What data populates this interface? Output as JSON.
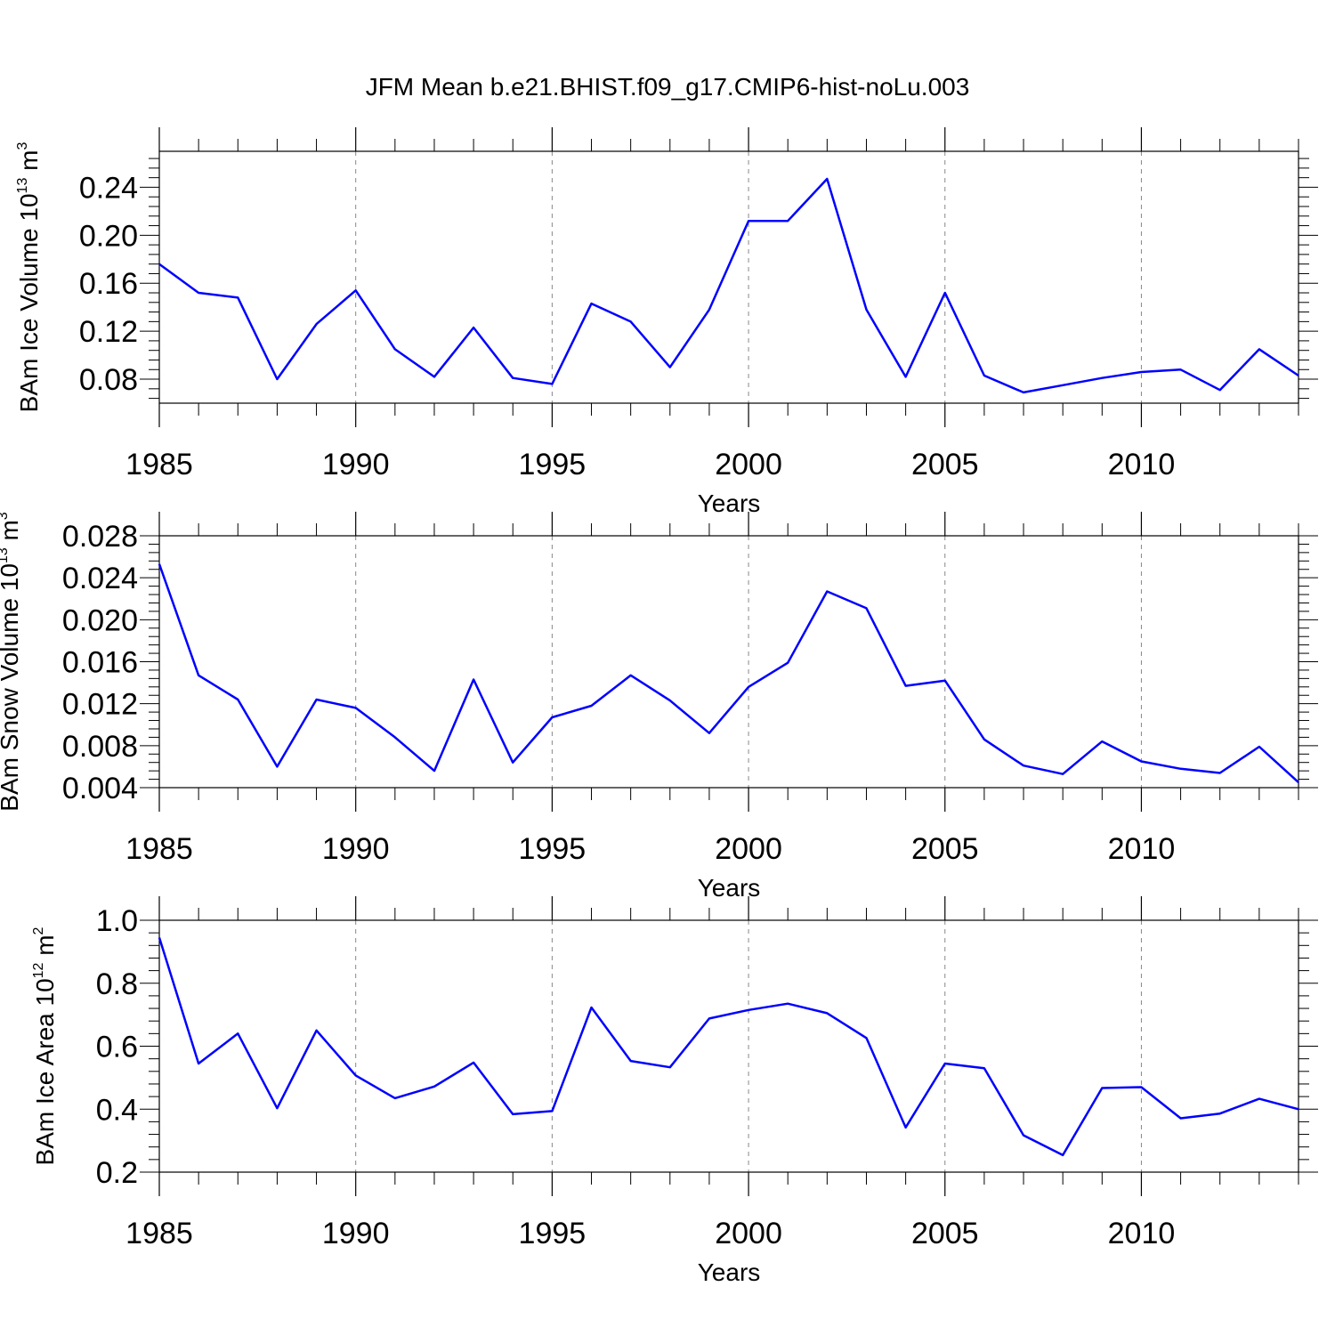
{
  "chart_data": {
    "title": "JFM Mean b.e21.BHIST.f09_g17.CMIP6-hist-noLu.003",
    "panels": [
      {
        "type": "line",
        "ylabel": {
          "prefix": "BAm Ice Volume 10",
          "exponent": "13",
          "unit": " m",
          "unit_exponent": "3"
        },
        "xlabel": "Years",
        "xlim": [
          1985,
          2014
        ],
        "ylim": [
          0.06,
          0.27
        ],
        "yticks": [
          "0.08",
          "0.12",
          "0.16",
          "0.20",
          "0.24"
        ],
        "xticks": [
          "1985",
          "1990",
          "1995",
          "2000",
          "2005",
          "2010"
        ],
        "grid": "vertical dashed at labeled years",
        "color": "#0000ff",
        "series": [
          {
            "name": "Ice Volume",
            "x": [
              1985,
              1986,
              1987,
              1988,
              1989,
              1990,
              1991,
              1992,
              1993,
              1994,
              1995,
              1996,
              1997,
              1998,
              1999,
              2000,
              2001,
              2002,
              2003,
              2004,
              2005,
              2006,
              2007,
              2008,
              2009,
              2010,
              2011,
              2012,
              2013,
              2014
            ],
            "values": [
              0.176,
              0.152,
              0.148,
              0.08,
              0.126,
              0.154,
              0.105,
              0.082,
              0.123,
              0.081,
              0.076,
              0.143,
              0.128,
              0.09,
              0.138,
              0.212,
              0.212,
              0.247,
              0.138,
              0.082,
              0.152,
              0.083,
              0.069,
              0.075,
              0.081,
              0.086,
              0.088,
              0.071,
              0.105,
              0.083
            ]
          }
        ]
      },
      {
        "type": "line",
        "ylabel": {
          "prefix": "BAm Snow Volume 10",
          "exponent": "13",
          "unit": " m",
          "unit_exponent": "3"
        },
        "xlabel": "Years",
        "xlim": [
          1985,
          2014
        ],
        "ylim": [
          0.004,
          0.028
        ],
        "yticks": [
          "0.004",
          "0.008",
          "0.012",
          "0.016",
          "0.020",
          "0.024",
          "0.028"
        ],
        "xticks": [
          "1985",
          "1990",
          "1995",
          "2000",
          "2005",
          "2010"
        ],
        "grid": "vertical dashed at labeled years",
        "color": "#0000ff",
        "series": [
          {
            "name": "Snow Volume",
            "x": [
              1985,
              1986,
              1987,
              1988,
              1989,
              1990,
              1991,
              1992,
              1993,
              1994,
              1995,
              1996,
              1997,
              1998,
              1999,
              2000,
              2001,
              2002,
              2003,
              2004,
              2005,
              2006,
              2007,
              2008,
              2009,
              2010,
              2011,
              2012,
              2013,
              2014
            ],
            "values": [
              0.0253,
              0.0147,
              0.0124,
              0.006,
              0.0124,
              0.0116,
              0.0088,
              0.0056,
              0.0143,
              0.0064,
              0.0107,
              0.0118,
              0.0147,
              0.0123,
              0.0092,
              0.0136,
              0.0159,
              0.0227,
              0.0211,
              0.0137,
              0.0142,
              0.0086,
              0.0061,
              0.0053,
              0.0084,
              0.0065,
              0.0058,
              0.0054,
              0.0079,
              0.0045
            ]
          }
        ]
      },
      {
        "type": "line",
        "ylabel": {
          "prefix": "BAm Ice Area 10",
          "exponent": "12",
          "unit": " m",
          "unit_exponent": "2"
        },
        "xlabel": "Years",
        "xlim": [
          1985,
          2014
        ],
        "ylim": [
          0.2,
          1.0
        ],
        "yticks": [
          "0.2",
          "0.4",
          "0.6",
          "0.8",
          "1.0"
        ],
        "xticks": [
          "1985",
          "1990",
          "1995",
          "2000",
          "2005",
          "2010"
        ],
        "grid": "vertical dashed at labeled years",
        "color": "#0000ff",
        "series": [
          {
            "name": "Ice Area",
            "x": [
              1985,
              1986,
              1987,
              1988,
              1989,
              1990,
              1991,
              1992,
              1993,
              1994,
              1995,
              1996,
              1997,
              1998,
              1999,
              2000,
              2001,
              2002,
              2003,
              2004,
              2005,
              2006,
              2007,
              2008,
              2009,
              2010,
              2011,
              2012,
              2013,
              2014
            ],
            "values": [
              0.945,
              0.545,
              0.64,
              0.403,
              0.65,
              0.507,
              0.435,
              0.472,
              0.548,
              0.384,
              0.394,
              0.723,
              0.553,
              0.533,
              0.688,
              0.715,
              0.735,
              0.705,
              0.626,
              0.342,
              0.545,
              0.53,
              0.317,
              0.254,
              0.467,
              0.47,
              0.371,
              0.386,
              0.433,
              0.4
            ]
          }
        ]
      }
    ]
  }
}
